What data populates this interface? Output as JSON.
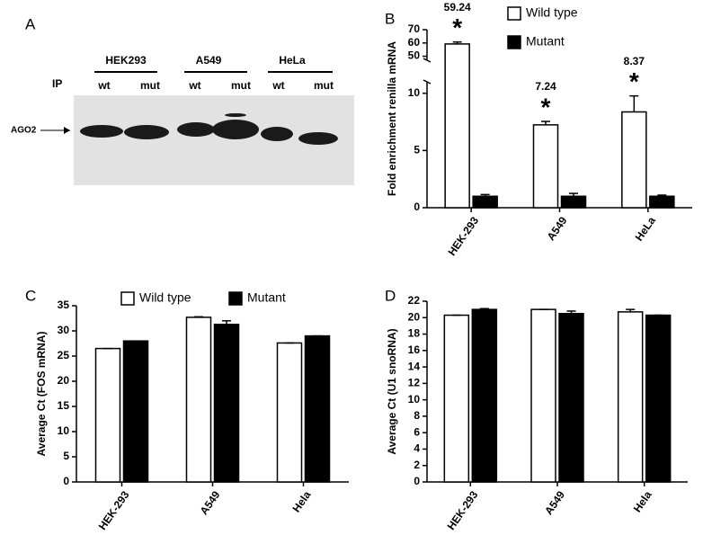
{
  "blot": {
    "panel_label": "A",
    "ip_label": "IP",
    "protein": "AGO2",
    "cell_lines": [
      "HEK293",
      "A549",
      "HeLa"
    ],
    "lanes": [
      "wt",
      "mut",
      "wt",
      "mut",
      "wt",
      "mut"
    ]
  },
  "chart_data": [
    {
      "type": "bar",
      "panel_label": "B",
      "ylabel": "Fold enrichment renilla mRNA",
      "categories": [
        "HEK-293",
        "A549",
        "HeLa"
      ],
      "series": [
        {
          "name": "Wild type",
          "color": "#ffffff",
          "values": [
            59.24,
            7.24,
            8.37
          ],
          "errors": [
            1.5,
            0.3,
            1.4
          ]
        },
        {
          "name": "Mutant",
          "color": "#000000",
          "values": [
            1.0,
            1.0,
            1.0
          ],
          "errors": [
            0.15,
            0.25,
            0.1
          ]
        }
      ],
      "significance": [
        "*",
        "*",
        "*"
      ],
      "ylim": [
        0,
        70
      ],
      "axis_break": [
        11,
        47
      ],
      "yticks": [
        0,
        5,
        10,
        50,
        60,
        70
      ],
      "legend": "top-right"
    },
    {
      "type": "bar",
      "panel_label": "C",
      "ylabel": "Average Ct (FOS mRNA)",
      "categories": [
        "HEK-293",
        "A549",
        "Hela"
      ],
      "series": [
        {
          "name": "Wild type",
          "color": "#ffffff",
          "values": [
            26.5,
            32.7,
            27.6
          ],
          "errors": [
            0,
            0.1,
            0
          ]
        },
        {
          "name": "Mutant",
          "color": "#000000",
          "values": [
            28,
            31.3,
            29
          ],
          "errors": [
            0,
            0.7,
            0
          ]
        }
      ],
      "ylim": [
        0,
        35
      ],
      "yticks": [
        0,
        5,
        10,
        15,
        20,
        25,
        30,
        35
      ],
      "legend": "top"
    },
    {
      "type": "bar",
      "panel_label": "D",
      "ylabel": "Average Ct (U1 snoRNA)",
      "categories": [
        "HEK-293",
        "A549",
        "Hela"
      ],
      "series": [
        {
          "color": "#ffffff",
          "values": [
            20.3,
            21,
            20.7
          ],
          "errors": [
            0,
            0,
            0.3
          ]
        },
        {
          "color": "#000000",
          "values": [
            21,
            20.5,
            20.3
          ],
          "errors": [
            0.1,
            0.3,
            0
          ]
        }
      ],
      "ylim": [
        0,
        22
      ],
      "yticks": [
        0,
        2,
        4,
        6,
        8,
        10,
        12,
        14,
        16,
        18,
        20,
        22
      ],
      "legend": "none"
    }
  ]
}
